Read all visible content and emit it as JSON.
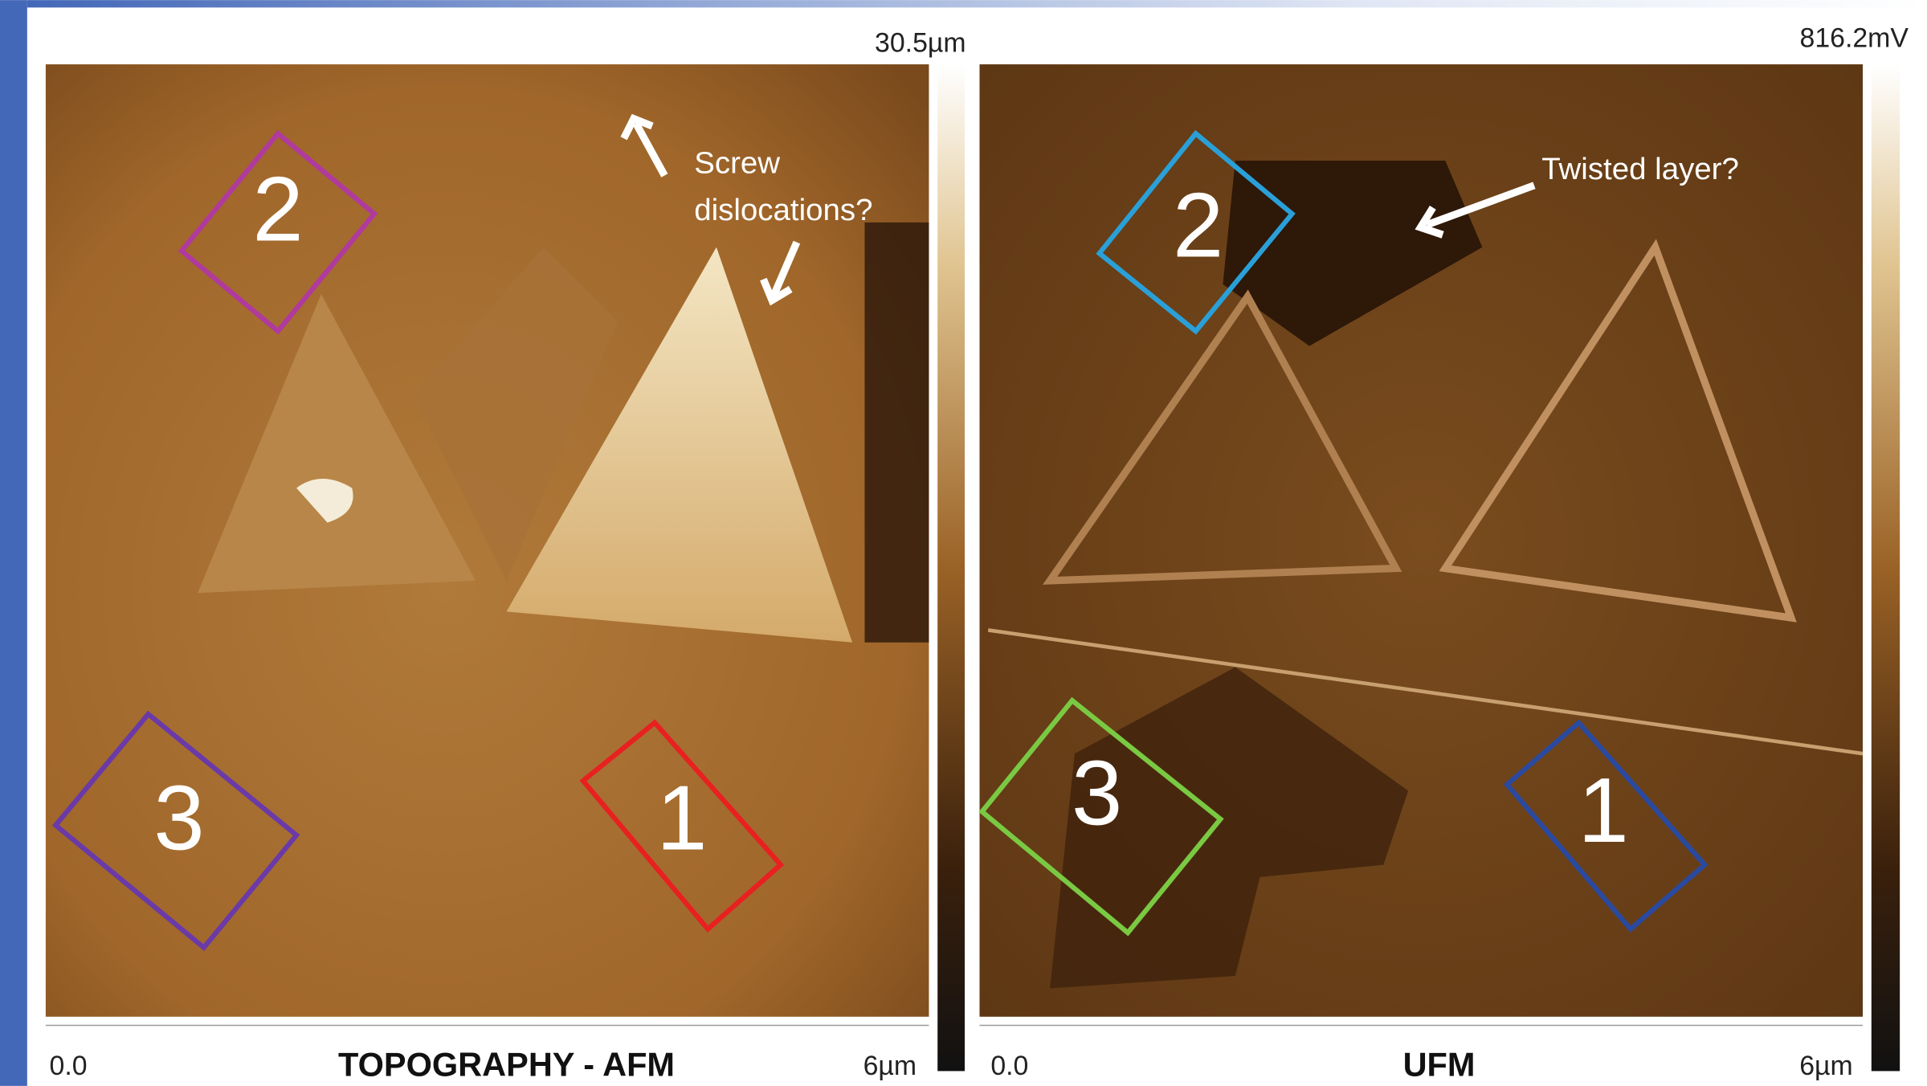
{
  "panels": [
    {
      "title": "TOPOGRAPHY - AFM",
      "scale_max": "30.5µm",
      "axis_start": "0.0",
      "axis_end": "6µm",
      "annotations": [
        "Screw",
        "dislocations?"
      ],
      "regions": [
        "2",
        "3",
        "1"
      ]
    },
    {
      "title": "UFM",
      "scale_max": "816.2mV",
      "axis_start": "0.0",
      "axis_end": "6µm",
      "annotations": [
        "Twisted layer?"
      ],
      "regions": [
        "2",
        "3",
        "1"
      ]
    }
  ]
}
